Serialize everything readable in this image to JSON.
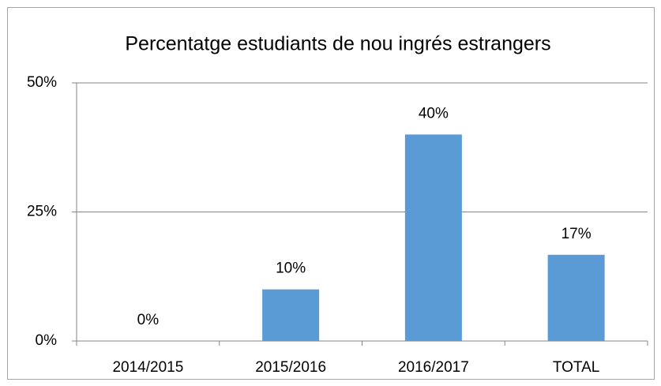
{
  "chart_data": {
    "type": "bar",
    "title": "Percentatge estudiants de nou ingrés estrangers",
    "categories": [
      "2014/2015",
      "2015/2016",
      "2016/2017",
      "TOTAL"
    ],
    "values": [
      0,
      10,
      40,
      16.7
    ],
    "value_labels": [
      "0%",
      "10%",
      "40%",
      "17%"
    ],
    "color": "#5b9bd5",
    "ylim": [
      0,
      50
    ],
    "yticks": [
      {
        "value": 0,
        "label": "0%"
      },
      {
        "value": 25,
        "label": "25%"
      },
      {
        "value": 50,
        "label": "50%"
      }
    ],
    "grid": true
  }
}
